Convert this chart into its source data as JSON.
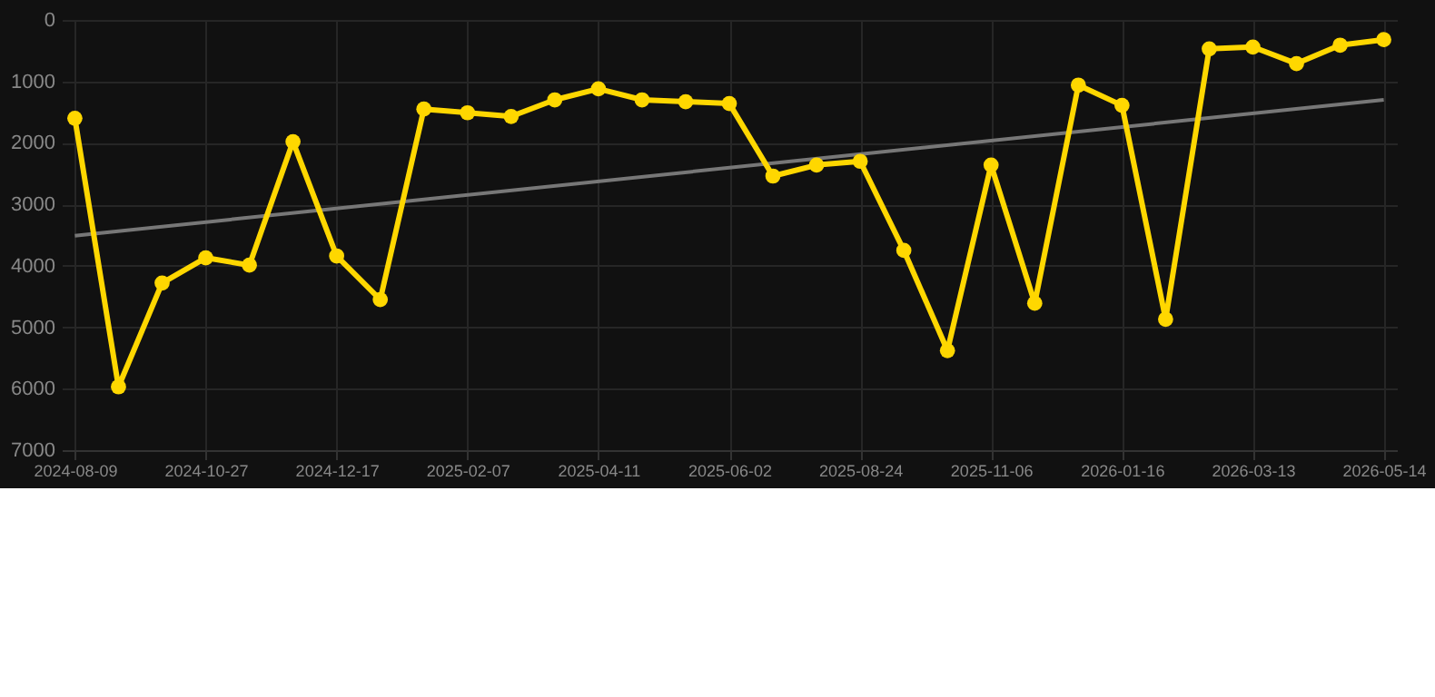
{
  "chart_data": {
    "type": "line",
    "categories": [
      "2024-08-09",
      null,
      null,
      "2024-10-27",
      null,
      null,
      "2024-12-17",
      null,
      null,
      "2025-02-07",
      null,
      null,
      "2025-04-11",
      null,
      null,
      "2025-06-02",
      null,
      null,
      "2025-08-24",
      null,
      null,
      "2025-11-06",
      null,
      null,
      "2026-01-16",
      null,
      null,
      "2026-03-13",
      null,
      null,
      "2026-05-14"
    ],
    "series": [
      {
        "color": "#ffd700",
        "marker": "circle",
        "values": [
          1600,
          5970,
          4280,
          3870,
          3990,
          1980,
          3840,
          4550,
          1450,
          1510,
          1570,
          1300,
          1120,
          1300,
          1330,
          1360,
          2540,
          2360,
          2300,
          3750,
          5380,
          2360,
          4610,
          1060,
          1390,
          4870,
          470,
          440,
          710,
          410,
          320
        ]
      },
      {
        "type": "line",
        "color": "#777777",
        "marker": "none",
        "values": [
          3510,
          null,
          null,
          null,
          null,
          null,
          null,
          null,
          null,
          null,
          null,
          null,
          null,
          null,
          null,
          null,
          null,
          null,
          null,
          null,
          null,
          null,
          null,
          null,
          null,
          null,
          null,
          null,
          null,
          null,
          1300
        ]
      }
    ],
    "ylim": [
      7000,
      0
    ],
    "yticks": [
      0,
      1000,
      2000,
      3000,
      4000,
      5000,
      6000,
      7000
    ],
    "grid": true
  }
}
